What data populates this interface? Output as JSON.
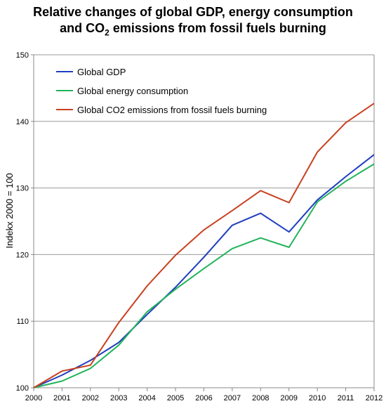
{
  "chart_data": {
    "type": "line",
    "title_line1": "Relative changes of global GDP, energy consumption",
    "title_line2_prefix": "and CO",
    "title_line2_sub": "2",
    "title_line2_suffix": " emissions from fossil fuels burning",
    "xlabel": "",
    "ylabel": "Indekx 2000 = 100",
    "x": [
      "2000",
      "2001",
      "2002",
      "2003",
      "2004",
      "2005",
      "2006",
      "2007",
      "2008",
      "2009",
      "2010",
      "2011",
      "2012"
    ],
    "ylim": [
      100,
      150
    ],
    "yticks": [
      100,
      110,
      120,
      130,
      140,
      150
    ],
    "grid": "horizontal",
    "legend_position": "top-left",
    "series": [
      {
        "name": "Global GDP",
        "color": "#1f3fbf",
        "values": [
          100,
          101.9,
          104.1,
          106.8,
          111.0,
          115.1,
          119.6,
          124.4,
          126.2,
          123.4,
          128.2,
          131.7,
          135.0
        ]
      },
      {
        "name": "Global energy consumption",
        "color": "#22b35a",
        "values": [
          100,
          101.0,
          102.9,
          106.4,
          111.4,
          114.8,
          117.9,
          120.9,
          122.5,
          121.1,
          127.9,
          131.0,
          133.6
        ]
      },
      {
        "name": "Global CO2 emissions from fossil fuels burning",
        "color": "#c8401f",
        "values": [
          100,
          102.5,
          103.4,
          109.8,
          115.3,
          119.9,
          123.7,
          126.6,
          129.6,
          127.8,
          135.4,
          139.8,
          142.7
        ]
      }
    ]
  }
}
